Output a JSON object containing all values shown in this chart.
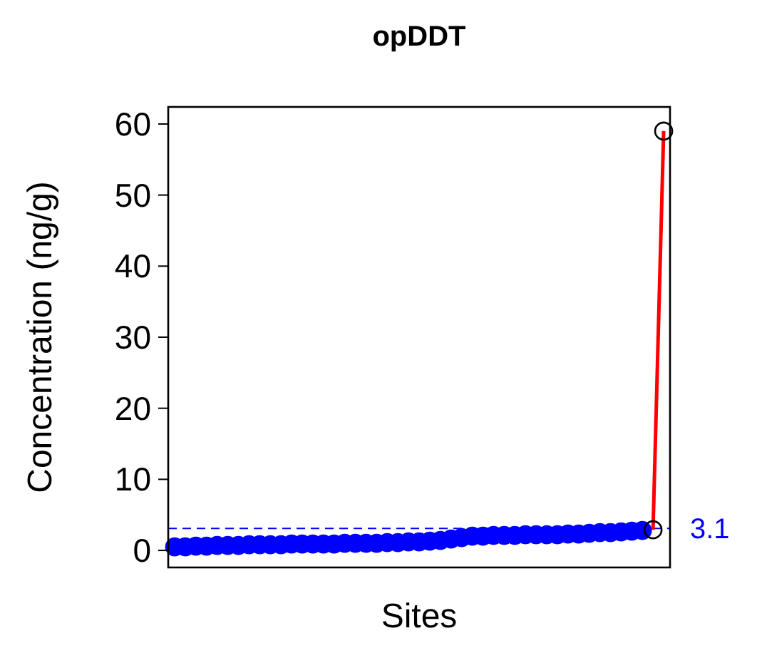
{
  "chart_data": {
    "type": "line",
    "title": "opDDT",
    "xlabel": "Sites",
    "ylabel": "Concentration (ng/g)",
    "categories": [
      null,
      null,
      null,
      null,
      null,
      null,
      null,
      null,
      null,
      null,
      null,
      null,
      null,
      null,
      null,
      null,
      null,
      null,
      null,
      null,
      null,
      null,
      null,
      null,
      null,
      null,
      null,
      null,
      null,
      null,
      null,
      null,
      null,
      null,
      null,
      null,
      null,
      null,
      null,
      null,
      null,
      null,
      null,
      null,
      null,
      null,
      null
    ],
    "series": [
      {
        "color": "#ff0000",
        "values": [
          null,
          null,
          null,
          null,
          null,
          null,
          null,
          null,
          null,
          null,
          null,
          null,
          null,
          null,
          null,
          null,
          null,
          null,
          null,
          null,
          null,
          null,
          null,
          null,
          null,
          null,
          null,
          null,
          null,
          null,
          null,
          null,
          null,
          null,
          null,
          null,
          null,
          null,
          null,
          null,
          null,
          null,
          null,
          null,
          null,
          2.9,
          59
        ]
      },
      {
        "type": "scatter",
        "color": "#0000ff",
        "marker": "circle",
        "values": [
          0.5,
          0.5,
          0.6,
          0.6,
          0.7,
          0.7,
          0.7,
          0.8,
          0.8,
          0.8,
          0.8,
          0.9,
          0.9,
          0.9,
          0.9,
          0.9,
          1.0,
          1.0,
          1.0,
          1.0,
          1.1,
          1.1,
          1.2,
          1.2,
          1.3,
          1.4,
          1.6,
          1.8,
          2.0,
          2.0,
          2.1,
          2.1,
          2.1,
          2.2,
          2.2,
          2.2,
          2.2,
          2.3,
          2.3,
          2.4,
          2.5,
          2.5,
          2.6,
          2.7,
          2.8,
          null,
          null
        ]
      },
      {
        "type": "scatter",
        "color": "#000000",
        "marker": "circle",
        "values": [
          null,
          null,
          null,
          null,
          null,
          null,
          null,
          null,
          null,
          null,
          null,
          null,
          null,
          null,
          null,
          null,
          null,
          null,
          null,
          null,
          null,
          null,
          null,
          null,
          null,
          null,
          null,
          null,
          null,
          null,
          null,
          null,
          null,
          null,
          null,
          null,
          null,
          null,
          null,
          null,
          null,
          null,
          null,
          null,
          null,
          2.9,
          59
        ]
      }
    ],
    "ylim": [
      -2.4,
      62.4
    ],
    "yticks": [
      0,
      10,
      20,
      30,
      40,
      50,
      60
    ],
    "tick_labels": "y",
    "grid": false,
    "ref_lines": [
      {
        "axis": "y",
        "value": 3.1,
        "label": "3.1",
        "color": "#0000ff",
        "line_style": "dashed"
      }
    ]
  }
}
